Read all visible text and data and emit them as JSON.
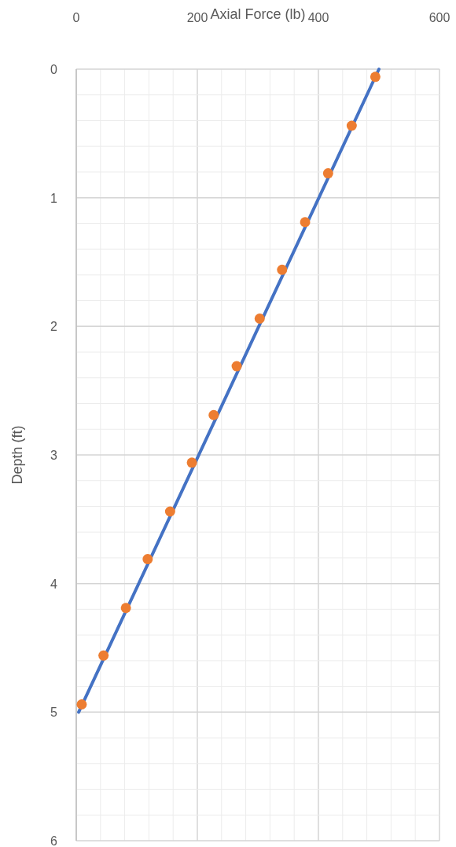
{
  "chart_data": {
    "type": "line",
    "xlabel": "Axial Force (lb)",
    "ylabel": "Depth (ft)",
    "xlim": [
      0,
      600
    ],
    "ylim": [
      6,
      0
    ],
    "xticks": [
      0,
      {
        "value": 40,
        "label": null
      },
      {
        "value": 80,
        "label": null
      },
      {
        "value": 120,
        "label": null
      },
      {
        "value": 160,
        "label": null
      },
      200,
      {
        "value": 240,
        "label": null
      },
      {
        "value": 280,
        "label": null
      },
      {
        "value": 320,
        "label": null
      },
      {
        "value": 360,
        "label": null
      },
      400,
      {
        "value": 440,
        "label": null
      },
      {
        "value": 480,
        "label": null
      },
      {
        "value": 520,
        "label": null
      },
      {
        "value": 560,
        "label": null
      },
      600
    ],
    "yticks": [
      0,
      {
        "value": 0.2,
        "label": null
      },
      {
        "value": 0.4,
        "label": null
      },
      {
        "value": 0.6,
        "label": null
      },
      {
        "value": 0.8,
        "label": null
      },
      1,
      {
        "value": 1.2,
        "label": null
      },
      {
        "value": 1.4,
        "label": null
      },
      {
        "value": 1.6,
        "label": null
      },
      {
        "value": 1.8,
        "label": null
      },
      2,
      {
        "value": 2.2,
        "label": null
      },
      {
        "value": 2.4,
        "label": null
      },
      {
        "value": 2.6,
        "label": null
      },
      {
        "value": 2.8,
        "label": null
      },
      3,
      {
        "value": 3.2,
        "label": null
      },
      {
        "value": 3.4,
        "label": null
      },
      {
        "value": 3.6,
        "label": null
      },
      {
        "value": 3.8,
        "label": null
      },
      4,
      {
        "value": 4.2,
        "label": null
      },
      {
        "value": 4.4,
        "label": null
      },
      {
        "value": 4.6,
        "label": null
      },
      {
        "value": 4.8,
        "label": null
      },
      5,
      {
        "value": 5.2,
        "label": null
      },
      {
        "value": 5.4,
        "label": null
      },
      {
        "value": 5.6,
        "label": null
      },
      {
        "value": 5.8,
        "label": null
      },
      6
    ],
    "grid": true,
    "series": [
      {
        "color": "#4472c4",
        "x": [
          500,
          4
        ],
        "values": [
          0,
          5
        ],
        "marker": "none",
        "line_style": "solid"
      },
      {
        "type": "scatter",
        "color": "#ed7d31",
        "marker": "circle",
        "x": [
          494,
          455,
          416,
          378,
          340,
          303,
          265,
          227,
          191,
          155,
          118,
          82,
          45,
          9
        ],
        "values": [
          0.06,
          0.44,
          0.81,
          1.19,
          1.56,
          1.94,
          2.31,
          2.69,
          3.06,
          3.44,
          3.81,
          4.19,
          4.56,
          4.94
        ]
      }
    ]
  }
}
